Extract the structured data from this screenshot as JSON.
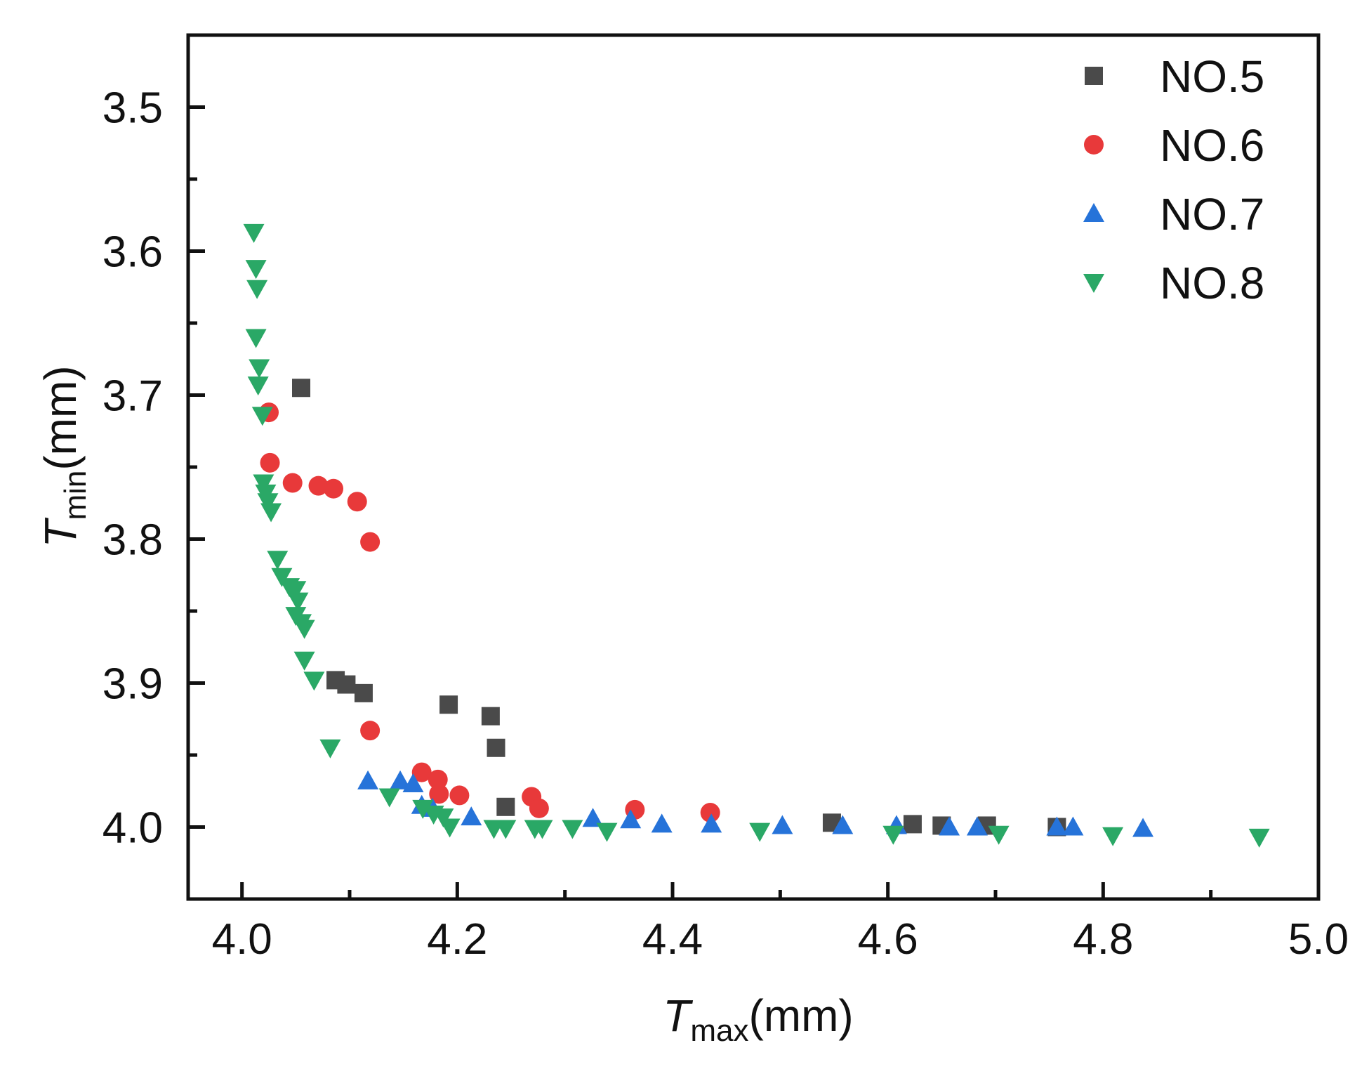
{
  "chart_data": {
    "type": "scatter",
    "title": "",
    "xlabel": {
      "symbol": "T",
      "subscript": "max",
      "unit": "(mm)"
    },
    "ylabel": {
      "symbol": "T",
      "subscript": "min",
      "unit": "(mm)"
    },
    "xlim": [
      3.95,
      5.0
    ],
    "ylim": [
      4.05,
      3.45
    ],
    "y_inverted": true,
    "xticks": [
      4.0,
      4.2,
      4.4,
      4.6,
      4.8,
      5.0
    ],
    "xtick_labels": [
      "4.0",
      "4.2",
      "4.4",
      "4.6",
      "4.8",
      "5.0"
    ],
    "yticks": [
      3.5,
      3.6,
      3.7,
      3.8,
      3.9,
      4.0
    ],
    "ytick_labels": [
      "3.5",
      "3.6",
      "3.7",
      "3.8",
      "3.9",
      "4.0"
    ],
    "grid": false,
    "legend_position": "top-right",
    "series": [
      {
        "name": "NO.5",
        "marker": "square",
        "color": "#4a4a4a",
        "points": [
          [
            4.055,
            3.695
          ],
          [
            4.087,
            3.898
          ],
          [
            4.097,
            3.901
          ],
          [
            4.113,
            3.907
          ],
          [
            4.192,
            3.915
          ],
          [
            4.231,
            3.923
          ],
          [
            4.236,
            3.945
          ],
          [
            4.245,
            3.986
          ],
          [
            4.548,
            3.997
          ],
          [
            4.623,
            3.998
          ],
          [
            4.65,
            3.999
          ],
          [
            4.692,
            3.999
          ],
          [
            4.757,
            4.0
          ]
        ]
      },
      {
        "name": "NO.6",
        "marker": "circle",
        "color": "#e8393a",
        "points": [
          [
            4.025,
            3.712
          ],
          [
            4.026,
            3.747
          ],
          [
            4.047,
            3.761
          ],
          [
            4.071,
            3.763
          ],
          [
            4.085,
            3.765
          ],
          [
            4.107,
            3.774
          ],
          [
            4.119,
            3.802
          ],
          [
            4.119,
            3.933
          ],
          [
            4.167,
            3.962
          ],
          [
            4.182,
            3.967
          ],
          [
            4.183,
            3.977
          ],
          [
            4.202,
            3.978
          ],
          [
            4.269,
            3.979
          ],
          [
            4.276,
            3.987
          ],
          [
            4.365,
            3.988
          ],
          [
            4.435,
            3.99
          ]
        ]
      },
      {
        "name": "NO.7",
        "marker": "triangle-up",
        "color": "#2673d9",
        "points": [
          [
            4.117,
            3.968
          ],
          [
            4.147,
            3.968
          ],
          [
            4.159,
            3.97
          ],
          [
            4.167,
            3.985
          ],
          [
            4.177,
            3.987
          ],
          [
            4.213,
            3.993
          ],
          [
            4.326,
            3.994
          ],
          [
            4.361,
            3.995
          ],
          [
            4.39,
            3.998
          ],
          [
            4.436,
            3.998
          ],
          [
            4.502,
            3.999
          ],
          [
            4.558,
            3.999
          ],
          [
            4.608,
            3.999
          ],
          [
            4.657,
            4.0
          ],
          [
            4.683,
            4.0
          ],
          [
            4.757,
            4.0
          ],
          [
            4.772,
            4.0
          ],
          [
            4.837,
            4.001
          ]
        ]
      },
      {
        "name": "NO.8",
        "marker": "triangle-down",
        "color": "#2aa866",
        "points": [
          [
            4.011,
            3.587
          ],
          [
            4.013,
            3.612
          ],
          [
            4.014,
            3.626
          ],
          [
            4.013,
            3.66
          ],
          [
            4.016,
            3.681
          ],
          [
            4.015,
            3.693
          ],
          [
            4.019,
            3.714
          ],
          [
            4.02,
            3.761
          ],
          [
            4.022,
            3.768
          ],
          [
            4.024,
            3.774
          ],
          [
            4.027,
            3.781
          ],
          [
            4.033,
            3.814
          ],
          [
            4.037,
            3.826
          ],
          [
            4.044,
            3.833
          ],
          [
            4.05,
            3.835
          ],
          [
            4.052,
            3.843
          ],
          [
            4.05,
            3.853
          ],
          [
            4.055,
            3.858
          ],
          [
            4.058,
            3.862
          ],
          [
            4.058,
            3.884
          ],
          [
            4.067,
            3.898
          ],
          [
            4.082,
            3.945
          ],
          [
            4.137,
            3.979
          ],
          [
            4.168,
            3.987
          ],
          [
            4.178,
            3.991
          ],
          [
            4.187,
            3.993
          ],
          [
            4.193,
            4.0
          ],
          [
            4.234,
            4.001
          ],
          [
            4.245,
            4.001
          ],
          [
            4.272,
            4.001
          ],
          [
            4.279,
            4.001
          ],
          [
            4.307,
            4.001
          ],
          [
            4.339,
            4.003
          ],
          [
            4.481,
            4.003
          ],
          [
            4.605,
            4.005
          ],
          [
            4.703,
            4.005
          ],
          [
            4.809,
            4.006
          ],
          [
            4.945,
            4.007
          ]
        ]
      }
    ]
  }
}
